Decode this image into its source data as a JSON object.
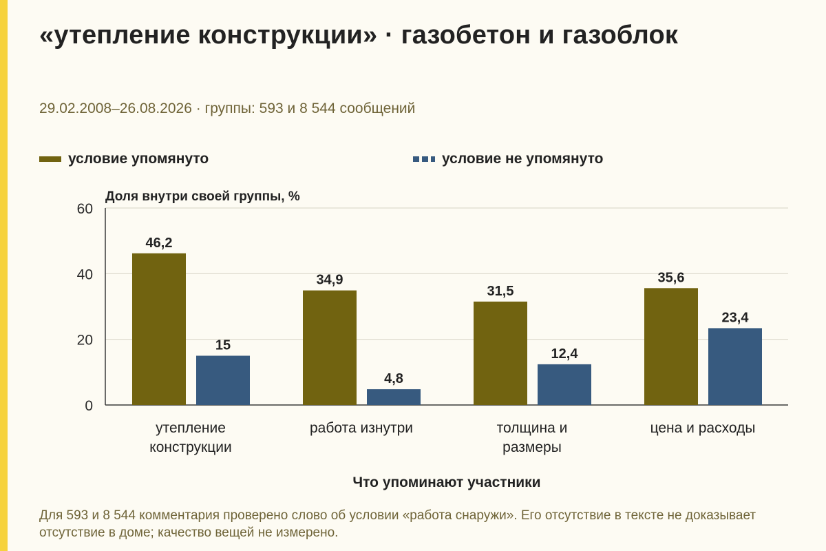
{
  "page": {
    "title": "«утепление конструкции» · газобетон и газоблок",
    "subtitle": "29.02.2008–26.08.2026 · группы: 593 и 8 544 сообщений",
    "note": "Для 593 и 8 544 комментария проверено слово об условии «работа снаружи». Его отсутствие в тексте не доказывает отсутствие в доме; качество вещей не измерено."
  },
  "colors": {
    "accent": "#f6d23d",
    "series1": "#716310",
    "series2": "#375a7f",
    "muted_text": "#6f6438"
  },
  "chart_data": {
    "type": "bar",
    "ylabel": "Доля внутри своей группы, %",
    "xlabel": "Что упоминают участники",
    "ylim": [
      0,
      60
    ],
    "yticks": [
      0,
      20,
      40,
      60
    ],
    "grid": true,
    "legend_position": "top",
    "categories": [
      [
        "утепление",
        "конструкции"
      ],
      [
        "работа изнутри"
      ],
      [
        "толщина и",
        "размеры"
      ],
      [
        "цена и расходы"
      ]
    ],
    "series": [
      {
        "name": "условие упомянуто",
        "color": "#716310",
        "values": [
          46.2,
          34.9,
          31.5,
          35.6
        ],
        "labels": [
          "46,2",
          "34,9",
          "31,5",
          "35,6"
        ]
      },
      {
        "name": "условие не упомянуто",
        "color": "#375a7f",
        "values": [
          15,
          4.8,
          12.4,
          23.4
        ],
        "labels": [
          "15",
          "4,8",
          "12,4",
          "23,4"
        ]
      }
    ]
  }
}
